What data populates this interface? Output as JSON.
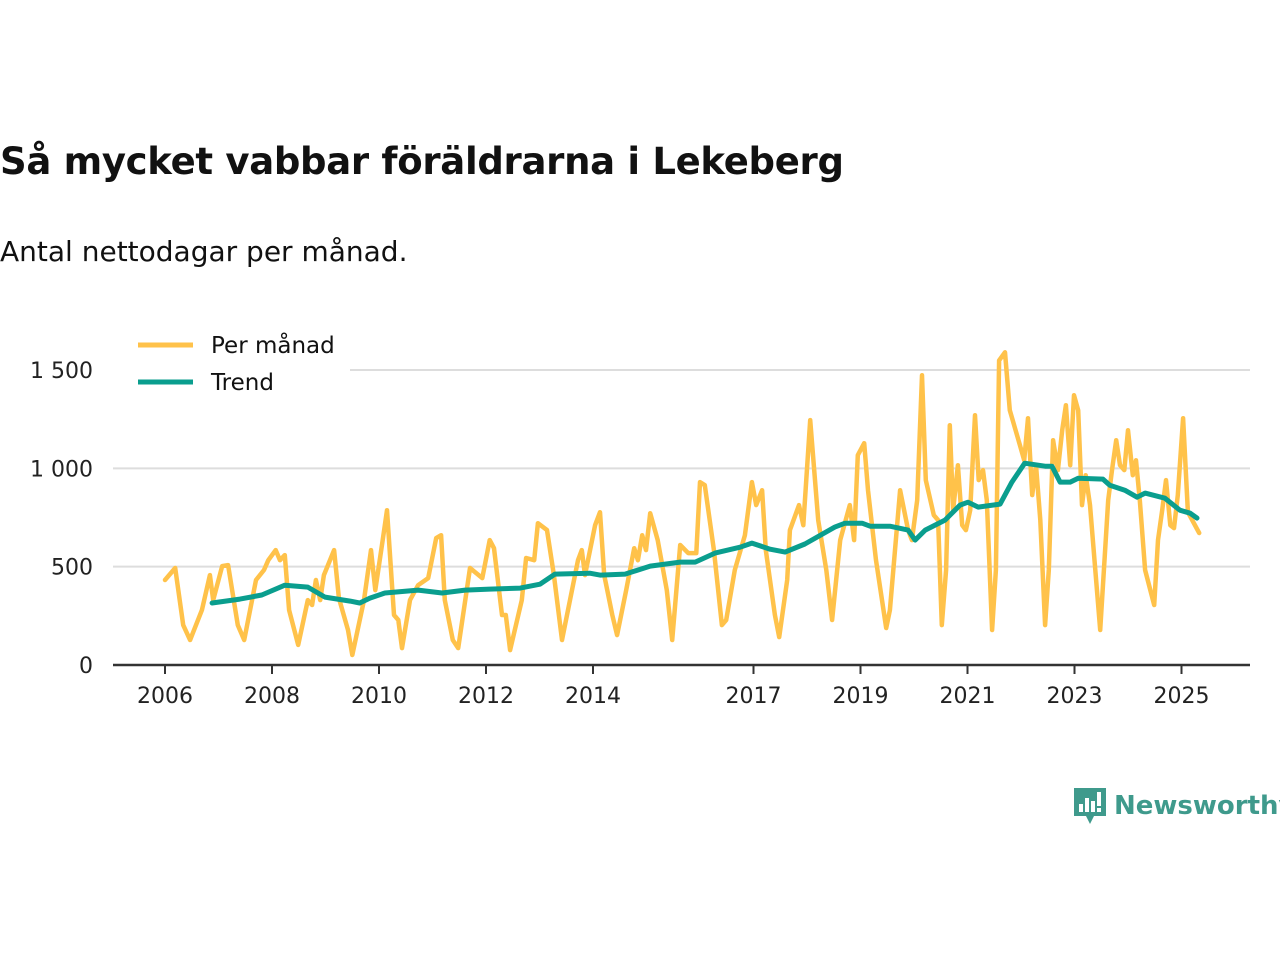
{
  "title": "Så mycket vabbar föräldrarna i Lekeberg",
  "subtitle": "Antal nettodagar per månad.",
  "logo": "Newsworthy",
  "colors": {
    "monthly": "#FFC24A",
    "trend": "#0A9E8E",
    "grid": "#dddddd",
    "axis": "#333333"
  },
  "chart_data": {
    "type": "line",
    "title": "Så mycket vabbar föräldrarna i Lekeberg",
    "xlabel": "",
    "ylabel": "",
    "xlim": [
      2005.8,
      2027.0
    ],
    "ylim": [
      0,
      1500
    ],
    "x_ticks": [
      2006,
      2008,
      2010,
      2012,
      2014,
      2017,
      2019,
      2021,
      2023,
      2025
    ],
    "x_tick_labels": [
      "2006",
      "2008",
      "2010",
      "2012",
      "2014",
      "2017",
      "2019",
      "2021",
      "2023",
      "2025"
    ],
    "y_ticks": [
      0,
      500,
      1000,
      1500
    ],
    "y_tick_labels": [
      "0",
      "500",
      "1 000",
      "1 500"
    ],
    "grid": true,
    "legend": "top-left",
    "series": [
      {
        "name": "Per månad",
        "color": "#FFC24A",
        "points": [
          [
            2006.0,
            432
          ],
          [
            2006.19,
            493
          ],
          [
            2006.34,
            203
          ],
          [
            2006.47,
            127
          ],
          [
            2006.69,
            279
          ],
          [
            2006.84,
            457
          ],
          [
            2006.9,
            330
          ],
          [
            2007.07,
            503
          ],
          [
            2007.18,
            508
          ],
          [
            2007.36,
            203
          ],
          [
            2007.48,
            127
          ],
          [
            2007.7,
            432
          ],
          [
            2007.85,
            483
          ],
          [
            2007.93,
            533
          ],
          [
            2008.07,
            584
          ],
          [
            2008.15,
            533
          ],
          [
            2008.24,
            559
          ],
          [
            2008.32,
            279
          ],
          [
            2008.49,
            102
          ],
          [
            2008.67,
            330
          ],
          [
            2008.75,
            305
          ],
          [
            2008.82,
            432
          ],
          [
            2008.9,
            330
          ],
          [
            2008.97,
            457
          ],
          [
            2009.16,
            584
          ],
          [
            2009.25,
            340
          ],
          [
            2009.42,
            178
          ],
          [
            2009.5,
            51
          ],
          [
            2009.72,
            330
          ],
          [
            2009.85,
            584
          ],
          [
            2009.93,
            381
          ],
          [
            2010.07,
            635
          ],
          [
            2010.15,
            787
          ],
          [
            2010.28,
            254
          ],
          [
            2010.36,
            229
          ],
          [
            2010.43,
            86
          ],
          [
            2010.58,
            330
          ],
          [
            2010.73,
            406
          ],
          [
            2010.92,
            442
          ],
          [
            2011.07,
            645
          ],
          [
            2011.16,
            660
          ],
          [
            2011.23,
            330
          ],
          [
            2011.38,
            127
          ],
          [
            2011.48,
            86
          ],
          [
            2011.7,
            493
          ],
          [
            2011.93,
            442
          ],
          [
            2012.07,
            635
          ],
          [
            2012.15,
            594
          ],
          [
            2012.3,
            254
          ],
          [
            2012.37,
            254
          ],
          [
            2012.45,
            76
          ],
          [
            2012.67,
            330
          ],
          [
            2012.75,
            544
          ],
          [
            2012.9,
            533
          ],
          [
            2012.97,
            721
          ],
          [
            2013.14,
            686
          ],
          [
            2013.27,
            457
          ],
          [
            2013.42,
            127
          ],
          [
            2013.57,
            330
          ],
          [
            2013.72,
            533
          ],
          [
            2013.79,
            584
          ],
          [
            2013.85,
            457
          ],
          [
            2014.04,
            711
          ],
          [
            2014.13,
            777
          ],
          [
            2014.21,
            457
          ],
          [
            2014.36,
            254
          ],
          [
            2014.45,
            152
          ],
          [
            2014.62,
            381
          ],
          [
            2014.77,
            594
          ],
          [
            2014.84,
            533
          ],
          [
            2014.92,
            660
          ],
          [
            2014.99,
            584
          ],
          [
            2015.07,
            772
          ],
          [
            2015.21,
            635
          ],
          [
            2015.38,
            381
          ],
          [
            2015.48,
            127
          ],
          [
            2015.63,
            610
          ],
          [
            2015.78,
            569
          ],
          [
            2015.93,
            569
          ],
          [
            2016.0,
            930
          ],
          [
            2016.09,
            914
          ],
          [
            2016.26,
            584
          ],
          [
            2016.41,
            203
          ],
          [
            2016.49,
            229
          ],
          [
            2016.65,
            483
          ],
          [
            2016.84,
            660
          ],
          [
            2016.97,
            930
          ],
          [
            2017.05,
            813
          ],
          [
            2017.16,
            889
          ],
          [
            2017.23,
            584
          ],
          [
            2017.4,
            254
          ],
          [
            2017.48,
            142
          ],
          [
            2017.63,
            432
          ],
          [
            2017.68,
            686
          ],
          [
            2017.85,
            813
          ],
          [
            2017.93,
            711
          ],
          [
            2018.06,
            1245
          ],
          [
            2018.21,
            737
          ],
          [
            2018.36,
            483
          ],
          [
            2018.47,
            229
          ],
          [
            2018.62,
            635
          ],
          [
            2018.8,
            813
          ],
          [
            2018.88,
            635
          ],
          [
            2018.95,
            1067
          ],
          [
            2019.07,
            1128
          ],
          [
            2019.14,
            889
          ],
          [
            2019.29,
            533
          ],
          [
            2019.48,
            188
          ],
          [
            2019.55,
            279
          ],
          [
            2019.74,
            889
          ],
          [
            2019.89,
            686
          ],
          [
            2019.96,
            635
          ],
          [
            2020.06,
            838
          ],
          [
            2020.15,
            1473
          ],
          [
            2020.22,
            940
          ],
          [
            2020.37,
            762
          ],
          [
            2020.45,
            737
          ],
          [
            2020.52,
            203
          ],
          [
            2020.6,
            483
          ],
          [
            2020.67,
            1219
          ],
          [
            2020.73,
            787
          ],
          [
            2020.82,
            1016
          ],
          [
            2020.9,
            711
          ],
          [
            2020.97,
            686
          ],
          [
            2021.05,
            787
          ],
          [
            2021.14,
            1270
          ],
          [
            2021.21,
            940
          ],
          [
            2021.29,
            991
          ],
          [
            2021.36,
            838
          ],
          [
            2021.46,
            178
          ],
          [
            2021.53,
            483
          ],
          [
            2021.59,
            1549
          ],
          [
            2021.7,
            1590
          ],
          [
            2021.79,
            1295
          ],
          [
            2021.98,
            1118
          ],
          [
            2022.06,
            1041
          ],
          [
            2022.13,
            1255
          ],
          [
            2022.21,
            864
          ],
          [
            2022.28,
            1016
          ],
          [
            2022.36,
            737
          ],
          [
            2022.45,
            203
          ],
          [
            2022.52,
            483
          ],
          [
            2022.6,
            1143
          ],
          [
            2022.69,
            991
          ],
          [
            2022.77,
            1194
          ],
          [
            2022.84,
            1321
          ],
          [
            2022.92,
            1016
          ],
          [
            2022.99,
            1372
          ],
          [
            2023.07,
            1295
          ],
          [
            2023.14,
            813
          ],
          [
            2023.21,
            965
          ],
          [
            2023.29,
            813
          ],
          [
            2023.48,
            178
          ],
          [
            2023.63,
            838
          ],
          [
            2023.7,
            991
          ],
          [
            2023.78,
            1143
          ],
          [
            2023.85,
            1016
          ],
          [
            2023.93,
            991
          ],
          [
            2024.0,
            1194
          ],
          [
            2024.09,
            965
          ],
          [
            2024.15,
            1041
          ],
          [
            2024.22,
            838
          ],
          [
            2024.32,
            483
          ],
          [
            2024.49,
            305
          ],
          [
            2024.56,
            635
          ],
          [
            2024.64,
            787
          ],
          [
            2024.71,
            940
          ],
          [
            2024.79,
            711
          ],
          [
            2024.86,
            696
          ],
          [
            2024.93,
            864
          ],
          [
            2025.03,
            1255
          ],
          [
            2025.12,
            777
          ],
          [
            2025.33,
            671
          ]
        ]
      },
      {
        "name": "Trend",
        "color": "#0A9E8E",
        "points": [
          [
            2006.88,
            315
          ],
          [
            2007.4,
            335
          ],
          [
            2007.81,
            356
          ],
          [
            2008.24,
            406
          ],
          [
            2008.67,
            396
          ],
          [
            2008.99,
            345
          ],
          [
            2009.46,
            325
          ],
          [
            2009.64,
            315
          ],
          [
            2009.83,
            340
          ],
          [
            2010.11,
            366
          ],
          [
            2010.73,
            381
          ],
          [
            2011.18,
            366
          ],
          [
            2011.61,
            381
          ],
          [
            2012.07,
            386
          ],
          [
            2012.64,
            391
          ],
          [
            2013.01,
            411
          ],
          [
            2013.29,
            462
          ],
          [
            2013.94,
            467
          ],
          [
            2014.13,
            457
          ],
          [
            2014.6,
            462
          ],
          [
            2015.07,
            503
          ],
          [
            2015.63,
            523
          ],
          [
            2015.91,
            523
          ],
          [
            2016.28,
            569
          ],
          [
            2016.75,
            599
          ],
          [
            2016.97,
            620
          ],
          [
            2017.31,
            589
          ],
          [
            2017.59,
            574
          ],
          [
            2017.96,
            615
          ],
          [
            2018.52,
            701
          ],
          [
            2018.71,
            721
          ],
          [
            2019.03,
            721
          ],
          [
            2019.18,
            706
          ],
          [
            2019.55,
            706
          ],
          [
            2019.89,
            686
          ],
          [
            2020.02,
            635
          ],
          [
            2020.21,
            686
          ],
          [
            2020.58,
            737
          ],
          [
            2020.86,
            813
          ],
          [
            2021.01,
            828
          ],
          [
            2021.2,
            803
          ],
          [
            2021.61,
            818
          ],
          [
            2021.83,
            930
          ],
          [
            2022.07,
            1026
          ],
          [
            2022.45,
            1011
          ],
          [
            2022.58,
            1011
          ],
          [
            2022.73,
            930
          ],
          [
            2022.92,
            930
          ],
          [
            2023.07,
            950
          ],
          [
            2023.53,
            945
          ],
          [
            2023.66,
            914
          ],
          [
            2023.94,
            889
          ],
          [
            2024.17,
            853
          ],
          [
            2024.32,
            874
          ],
          [
            2024.69,
            848
          ],
          [
            2024.97,
            787
          ],
          [
            2025.16,
            772
          ],
          [
            2025.29,
            747
          ]
        ]
      }
    ]
  }
}
